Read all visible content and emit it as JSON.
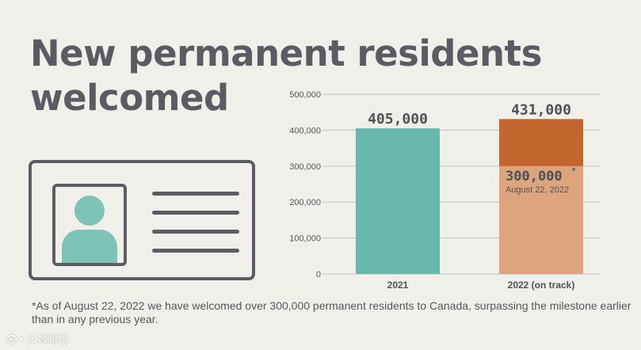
{
  "title": "New permanent residents welcomed",
  "footnote": "*As of August 22, 2022 we have welcomed over 300,000 permanent residents to Canada, surpassing the milestone earlier than in any previous year.",
  "watermark": "👁• 大数跨境",
  "colors": {
    "background": "#f1efe9",
    "text": "#555760",
    "teal": "#67b8aa",
    "orange_dark": "#c2662e",
    "orange_light": "#dea47d",
    "grid": "#c9c9c9",
    "avatar": "#7dc3b8"
  },
  "icons": [
    "id-card-icon",
    "person-avatar-icon"
  ],
  "chart_data": {
    "type": "bar",
    "categories": [
      "2021",
      "2022 (on track)"
    ],
    "ylim": [
      0,
      500000
    ],
    "yticks": [
      "0",
      "100,000",
      "200,000",
      "300,000",
      "400,000",
      "500,000"
    ],
    "ytick_values": [
      0,
      100000,
      200000,
      300000,
      400000,
      500000
    ],
    "grid": true,
    "bars": [
      {
        "category": "2021",
        "value": 405000,
        "label": "405,000",
        "color": "#67b8aa"
      },
      {
        "category": "2022 (on track)",
        "value": 431000,
        "label": "431,000",
        "color": "#c2662e",
        "segments": [
          {
            "value": 300000,
            "color": "#dea47d"
          },
          {
            "value": 131000,
            "color": "#c2662e"
          }
        ],
        "milestone": {
          "value": 300000,
          "label": "300,000",
          "marker": "*",
          "sublabel": "August 22, 2022"
        }
      }
    ]
  }
}
